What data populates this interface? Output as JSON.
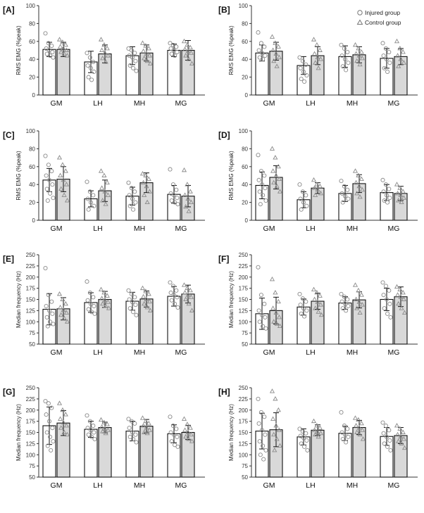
{
  "figure": {
    "legend": {
      "injured": "Injured group",
      "control": "Control group"
    }
  },
  "chart_data": [
    {
      "panel": "[A]",
      "type": "bar",
      "title": "",
      "xlabel": "",
      "ylabel": "RMS EMG (%peak)",
      "ylim": [
        0,
        100
      ],
      "yticks": [
        0,
        20,
        40,
        60,
        80,
        100
      ],
      "categories": [
        "GM",
        "LH",
        "MH",
        "MG"
      ],
      "series": [
        {
          "name": "Injured group",
          "values": [
            51,
            37,
            44,
            50
          ],
          "sd": [
            8,
            12,
            10,
            7
          ],
          "points": [
            [
              69,
              58,
              55,
              52,
              50,
              48,
              46,
              44,
              42
            ],
            [
              47,
              42,
              37,
              33,
              30,
              26,
              20,
              17
            ],
            [
              52,
              50,
              47,
              44,
              42,
              38,
              33,
              30,
              27
            ],
            [
              58,
              56,
              54,
              52,
              50,
              48,
              46,
              44
            ]
          ]
        },
        {
          "name": "Control group",
          "values": [
            51,
            46,
            47,
            50
          ],
          "sd": [
            8,
            10,
            9,
            11
          ],
          "points": [
            [
              62,
              59,
              56,
              54,
              52,
              50,
              48,
              46,
              44
            ],
            [
              62,
              56,
              52,
              50,
              47,
              44,
              41,
              37
            ],
            [
              58,
              55,
              52,
              49,
              46,
              44,
              41,
              38,
              35
            ],
            [
              60,
              56,
              53,
              51,
              49,
              47,
              44,
              40,
              35
            ]
          ]
        }
      ]
    },
    {
      "panel": "[B]",
      "type": "bar",
      "title": "",
      "xlabel": "",
      "ylabel": "RMS EMG (%peak)",
      "ylim": [
        0,
        100
      ],
      "yticks": [
        0,
        20,
        40,
        60,
        80,
        100
      ],
      "categories": [
        "GM",
        "LH",
        "MH",
        "MG"
      ],
      "series": [
        {
          "name": "Injured group",
          "values": [
            47,
            33,
            43,
            41
          ],
          "sd": [
            9,
            10,
            12,
            11
          ],
          "points": [
            [
              70,
              58,
              54,
              50,
              47,
              44,
              42,
              40
            ],
            [
              42,
              38,
              34,
              30,
              26,
              22,
              18,
              15
            ],
            [
              56,
              52,
              48,
              44,
              40,
              36,
              32,
              28
            ],
            [
              58,
              52,
              48,
              44,
              40,
              36,
              30,
              26
            ]
          ]
        },
        {
          "name": "Control group",
          "values": [
            49,
            44,
            45,
            43
          ],
          "sd": [
            10,
            10,
            9,
            9
          ],
          "points": [
            [
              65,
              58,
              54,
              50,
              46,
              42,
              38,
              32
            ],
            [
              62,
              56,
              50,
              46,
              42,
              40,
              36,
              30
            ],
            [
              56,
              52,
              48,
              46,
              44,
              41,
              38,
              34
            ],
            [
              60,
              52,
              48,
              44,
              40,
              36,
              32
            ]
          ]
        }
      ]
    },
    {
      "panel": "[C]",
      "type": "bar",
      "title": "",
      "xlabel": "",
      "ylabel": "RMS EMG (%peak)",
      "ylim": [
        0,
        100
      ],
      "yticks": [
        0,
        20,
        40,
        60,
        80,
        100
      ],
      "categories": [
        "GM",
        "LH",
        "MH",
        "MG"
      ],
      "series": [
        {
          "name": "Injured group",
          "values": [
            45,
            24,
            27,
            29
          ],
          "sd": [
            13,
            9,
            10,
            10
          ],
          "points": [
            [
              72,
              62,
              55,
              50,
              45,
              40,
              35,
              30,
              25,
              22
            ],
            [
              43,
              32,
              28,
              24,
              20,
              16,
              12
            ],
            [
              42,
              36,
              32,
              28,
              24,
              20,
              16,
              12
            ],
            [
              57,
              40,
              34,
              30,
              28,
              25,
              22,
              20,
              18
            ]
          ]
        },
        {
          "name": "Control group",
          "values": [
            46,
            33,
            42,
            27
          ],
          "sd": [
            14,
            12,
            11,
            12
          ],
          "points": [
            [
              70,
              62,
              55,
              50,
              45,
              40,
              35,
              28,
              22
            ],
            [
              55,
              50,
              42,
              36,
              32,
              28,
              22,
              18
            ],
            [
              52,
              50,
              46,
              42,
              38,
              32,
              28,
              20
            ],
            [
              56,
              40,
              32,
              28,
              24,
              20,
              15,
              10
            ]
          ]
        }
      ]
    },
    {
      "panel": "[D]",
      "type": "bar",
      "title": "",
      "xlabel": "",
      "ylabel": "RMS EMG (%peak)",
      "ylim": [
        0,
        100
      ],
      "yticks": [
        0,
        20,
        40,
        60,
        80,
        100
      ],
      "categories": [
        "GM",
        "LH",
        "MH",
        "MG"
      ],
      "series": [
        {
          "name": "Injured group",
          "values": [
            39,
            23,
            30,
            31
          ],
          "sd": [
            15,
            9,
            9,
            9
          ],
          "points": [
            [
              73,
              55,
              50,
              45,
              40,
              36,
              32,
              28,
              22,
              18
            ],
            [
              40,
              32,
              28,
              24,
              20,
              16,
              12
            ],
            [
              44,
              38,
              34,
              30,
              27,
              24,
              20
            ],
            [
              45,
              40,
              35,
              32,
              28,
              25,
              22,
              20
            ]
          ]
        },
        {
          "name": "Control group",
          "values": [
            48,
            36,
            41,
            30
          ],
          "sd": [
            13,
            6,
            10,
            8
          ],
          "points": [
            [
              80,
              70,
              60,
              55,
              50,
              46,
              42,
              38,
              32
            ],
            [
              45,
              40,
              38,
              36,
              34,
              30,
              28
            ],
            [
              55,
              50,
              46,
              42,
              38,
              34,
              30,
              26
            ],
            [
              40,
              36,
              32,
              30,
              28,
              25,
              22,
              20
            ]
          ]
        }
      ]
    },
    {
      "panel": "[E]",
      "type": "bar",
      "title": "",
      "xlabel": "",
      "ylabel": "Median frequency (Hz)",
      "ylim": [
        50,
        250
      ],
      "yticks": [
        50,
        75,
        100,
        125,
        150,
        175,
        200,
        225,
        250
      ],
      "categories": [
        "GM",
        "LH",
        "MH",
        "MG"
      ],
      "series": [
        {
          "name": "Injured group",
          "values": [
            128,
            143,
            146,
            157
          ],
          "sd": [
            35,
            22,
            20,
            22
          ],
          "points": [
            [
              220,
              160,
              145,
              135,
              125,
              118,
              110,
              100,
              95,
              90
            ],
            [
              190,
              165,
              155,
              148,
              140,
              135,
              128,
              122,
              118
            ],
            [
              170,
              162,
              155,
              150,
              144,
              138,
              130,
              122,
              115
            ],
            [
              188,
              180,
              170,
              165,
              160,
              155,
              148,
              140,
              132
            ]
          ]
        },
        {
          "name": "Control group",
          "values": [
            129,
            150,
            151,
            162
          ],
          "sd": [
            25,
            18,
            18,
            20
          ],
          "points": [
            [
              162,
              150,
              140,
              132,
              126,
              120,
              115,
              108,
              100
            ],
            [
              172,
              165,
              158,
              152,
              148,
              144,
              140,
              135,
              130
            ],
            [
              175,
              168,
              162,
              156,
              150,
              145,
              140,
              132,
              125
            ],
            [
              182,
              175,
              170,
              165,
              160,
              155,
              150,
              140,
              125
            ]
          ]
        }
      ]
    },
    {
      "panel": "[F]",
      "type": "bar",
      "title": "",
      "xlabel": "",
      "ylabel": "Median frequency (Hz)",
      "ylim": [
        50,
        250
      ],
      "yticks": [
        50,
        75,
        100,
        125,
        150,
        175,
        200,
        225,
        250
      ],
      "categories": [
        "GM",
        "LH",
        "MH",
        "MG"
      ],
      "series": [
        {
          "name": "Injured group",
          "values": [
            118,
            133,
            142,
            150
          ],
          "sd": [
            35,
            18,
            14,
            25
          ],
          "points": [
            [
              222,
              160,
              140,
              125,
              115,
              110,
              100,
              90,
              85
            ],
            [
              162,
              152,
              145,
              138,
              130,
              125,
              118,
              112
            ],
            [
              162,
              156,
              150,
              145,
              140,
              135,
              130,
              125
            ],
            [
              188,
              180,
              170,
              160,
              150,
              140,
              130,
              118,
              110
            ]
          ]
        },
        {
          "name": "Control group",
          "values": [
            125,
            146,
            149,
            156
          ],
          "sd": [
            30,
            18,
            18,
            22
          ],
          "points": [
            [
              195,
              165,
              145,
              130,
              120,
              110,
              100,
              95,
              90
            ],
            [
              172,
              165,
              158,
              150,
              144,
              138,
              130,
              122,
              115
            ],
            [
              182,
              170,
              160,
              150,
              144,
              138,
              130,
              120
            ],
            [
              178,
              172,
              165,
              160,
              155,
              150,
              140,
              130,
              120
            ]
          ]
        }
      ]
    },
    {
      "panel": "[G]",
      "type": "bar",
      "title": "",
      "xlabel": "",
      "ylabel": "Median frequency (Hz)",
      "ylim": [
        50,
        250
      ],
      "yticks": [
        50,
        75,
        100,
        125,
        150,
        175,
        200,
        225,
        250
      ],
      "categories": [
        "GM",
        "LH",
        "MH",
        "MG"
      ],
      "series": [
        {
          "name": "Injured group",
          "values": [
            165,
            157,
            153,
            147
          ],
          "sd": [
            42,
            18,
            22,
            20
          ],
          "points": [
            [
              220,
              215,
              205,
              190,
              175,
              160,
              150,
              140,
              130,
              120,
              110
            ],
            [
              188,
              175,
              165,
              160,
              155,
              150,
              145,
              140,
              135
            ],
            [
              180,
              175,
              170,
              160,
              150,
              145,
              140,
              135,
              128
            ],
            [
              185,
              165,
              158,
              150,
              145,
              140,
              130,
              122,
              118
            ]
          ]
        },
        {
          "name": "Control group",
          "values": [
            171,
            161,
            164,
            150
          ],
          "sd": [
            28,
            12,
            15,
            16
          ],
          "points": [
            [
              215,
              200,
              190,
              180,
              172,
              165,
              160,
              150,
              145
            ],
            [
              178,
              172,
              168,
              162,
              158,
              155,
              152,
              148
            ],
            [
              182,
              175,
              170,
              165,
              160,
              155,
              150,
              148
            ],
            [
              180,
              168,
              160,
              155,
              150,
              145,
              140,
              135,
              130
            ]
          ]
        }
      ]
    },
    {
      "panel": "[H]",
      "type": "bar",
      "title": "",
      "xlabel": "",
      "ylabel": "Median frequency (Hz)",
      "ylim": [
        50,
        250
      ],
      "yticks": [
        50,
        75,
        100,
        125,
        150,
        175,
        200,
        225,
        250
      ],
      "categories": [
        "GM",
        "LH",
        "MH",
        "MG"
      ],
      "series": [
        {
          "name": "Injured group",
          "values": [
            153,
            140,
            148,
            141
          ],
          "sd": [
            40,
            18,
            16,
            20
          ],
          "points": [
            [
              225,
              195,
              185,
              170,
              155,
              145,
              130,
              120,
              110,
              100,
              90
            ],
            [
              158,
              152,
              148,
              142,
              138,
              132,
              125,
              118,
              110
            ],
            [
              195,
              165,
              158,
              150,
              145,
              140,
              135,
              128
            ],
            [
              172,
              165,
              155,
              148,
              140,
              132,
              125,
              118,
              110
            ]
          ]
        },
        {
          "name": "Control group",
          "values": [
            156,
            155,
            161,
            143
          ],
          "sd": [
            38,
            12,
            16,
            18
          ],
          "points": [
            [
              242,
              225,
              200,
              180,
              165,
              155,
              145,
              135,
              120,
              110
            ],
            [
              175,
              165,
              160,
              155,
              150,
              148,
              145,
              140
            ],
            [
              182,
              178,
              170,
              165,
              160,
              155,
              150,
              145,
              135
            ],
            [
              165,
              158,
              150,
              145,
              140,
              135,
              130,
              125,
              115
            ]
          ]
        }
      ]
    }
  ]
}
